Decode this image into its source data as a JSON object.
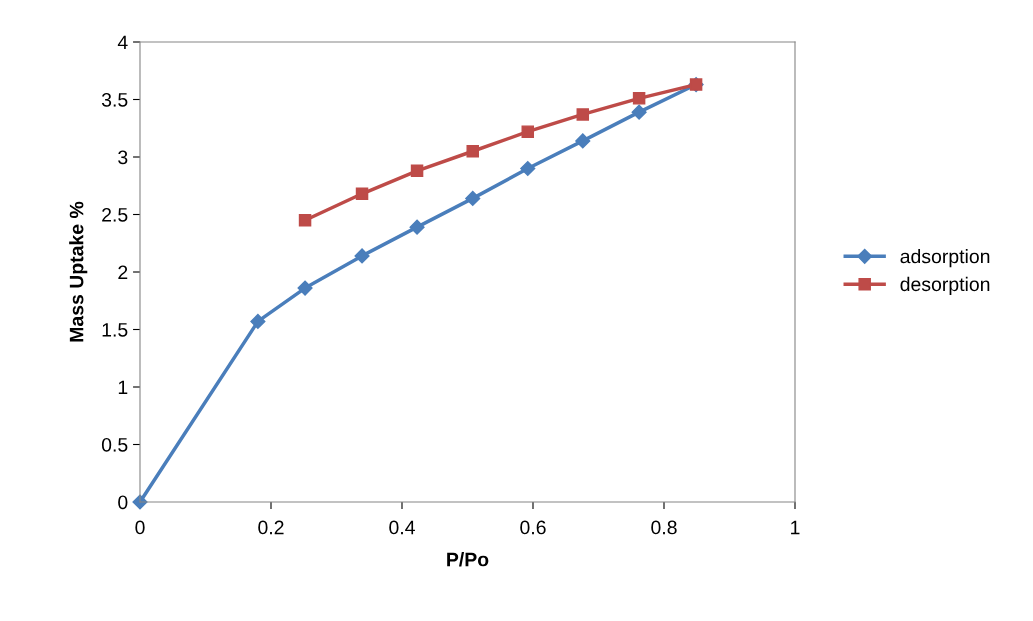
{
  "chart_data": {
    "type": "line",
    "xlabel": "P/Po",
    "ylabel": "Mass Uptake %",
    "xlim": [
      0,
      1
    ],
    "xticks": [
      0,
      0.2,
      0.4,
      0.6,
      0.8,
      1
    ],
    "ylim": [
      0,
      4
    ],
    "yticks": [
      0,
      0.5,
      1,
      1.5,
      2,
      2.5,
      3,
      3.5,
      4
    ],
    "grid": false,
    "legend": "right",
    "line_style": "solid",
    "series": [
      {
        "name": "adsorption",
        "color": "#4a7ebb",
        "marker": "diamond",
        "x": [
          0,
          0.18,
          0.252,
          0.339,
          0.423,
          0.508,
          0.592,
          0.676,
          0.762,
          0.849
        ],
        "values": [
          0,
          1.57,
          1.86,
          2.14,
          2.39,
          2.64,
          2.9,
          3.14,
          3.39,
          3.63
        ]
      },
      {
        "name": "desorption",
        "color": "#be4b48",
        "marker": "square",
        "x": [
          0.252,
          0.339,
          0.423,
          0.508,
          0.592,
          0.676,
          0.762,
          0.849
        ],
        "values": [
          2.45,
          2.68,
          2.88,
          3.05,
          3.22,
          3.37,
          3.51,
          3.63
        ]
      }
    ]
  }
}
